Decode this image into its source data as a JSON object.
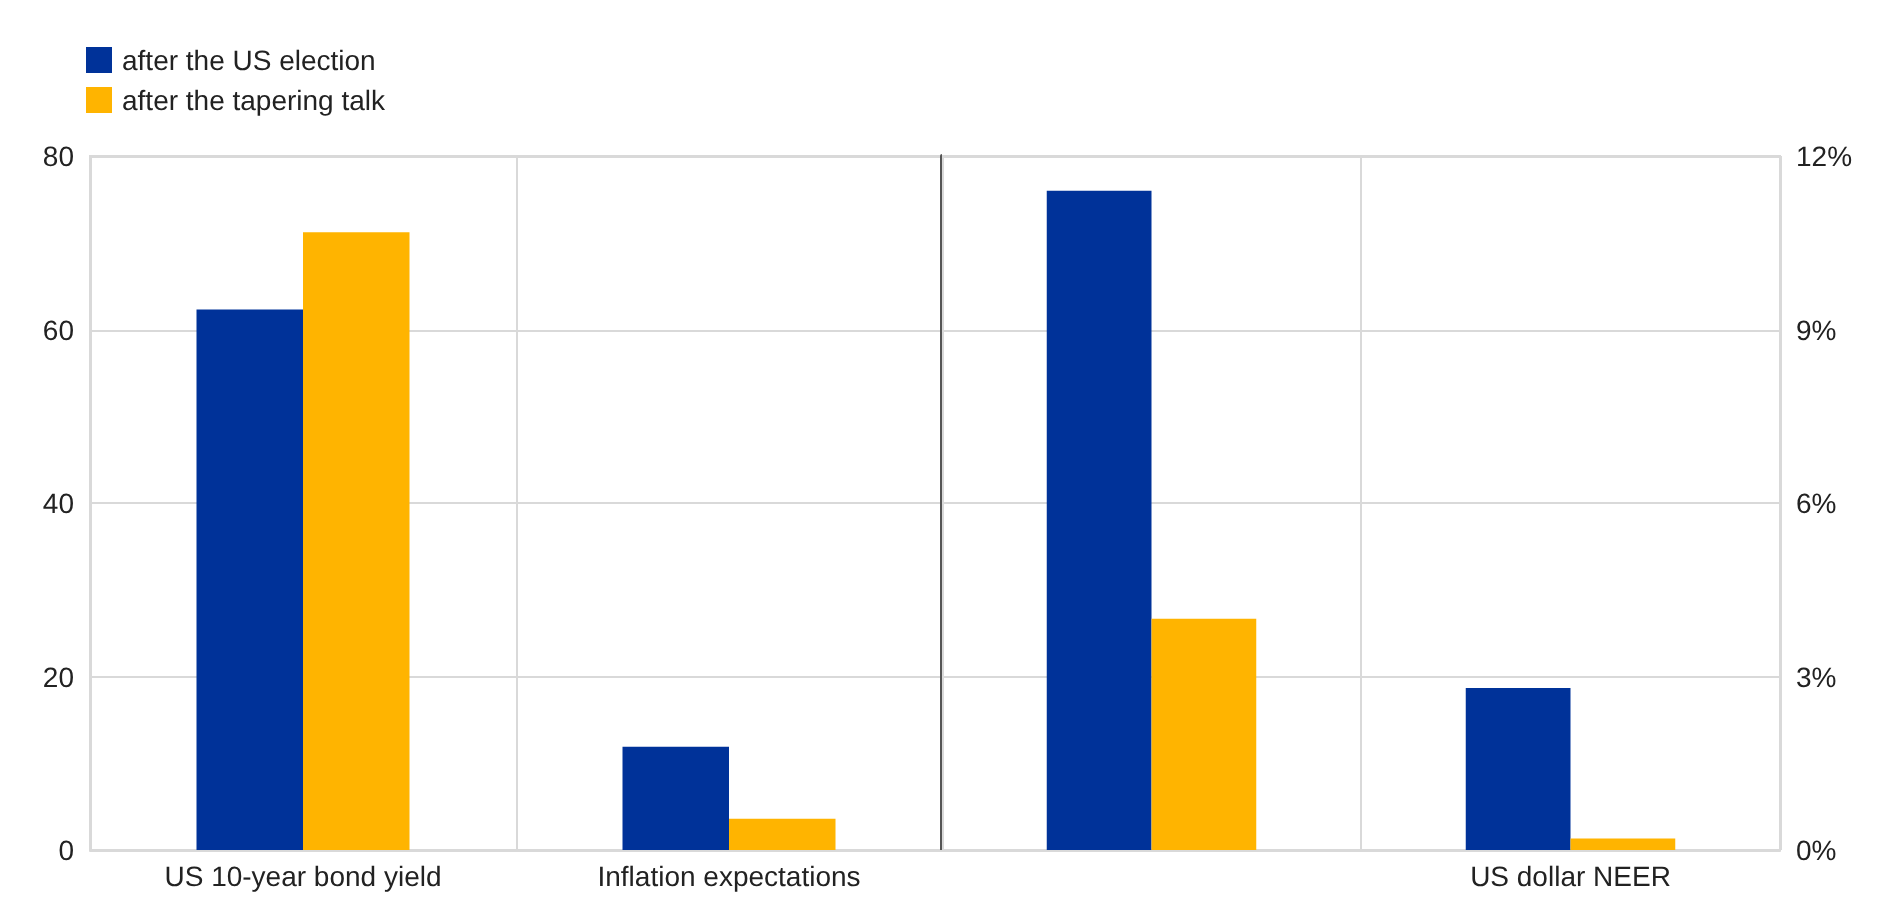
{
  "chart_data": [
    {
      "type": "bar",
      "categories": [
        "US 10-year bond yield",
        "Inflation expectations"
      ],
      "series": [
        {
          "name": "after the US election",
          "color": "#003299",
          "values": [
            62.3,
            11.9
          ]
        },
        {
          "name": "after the tapering talk",
          "color": "#ffb400",
          "values": [
            71.2,
            3.6
          ]
        }
      ],
      "ylim": [
        0,
        80
      ],
      "yticks": [
        0,
        20,
        40,
        60,
        80
      ],
      "grid": true,
      "legend": "top left"
    },
    {
      "type": "bar",
      "categories": [
        null,
        "US dollar NEER"
      ],
      "series": [
        {
          "color": "#003299",
          "axis": "y2",
          "values": [
            11.4,
            2.8
          ]
        },
        {
          "color": "#ffb400",
          "axis": "y2",
          "values": [
            4.0,
            0.2
          ]
        }
      ],
      "y2lim": [
        0,
        12
      ],
      "y2ticks": [
        {
          "value": 0,
          "label": "0%"
        },
        {
          "value": 3,
          "label": "3%"
        },
        {
          "value": 6,
          "label": "6%"
        },
        {
          "value": 9,
          "label": "9%"
        },
        {
          "value": 12,
          "label": "12%"
        }
      ],
      "grid": true
    }
  ]
}
